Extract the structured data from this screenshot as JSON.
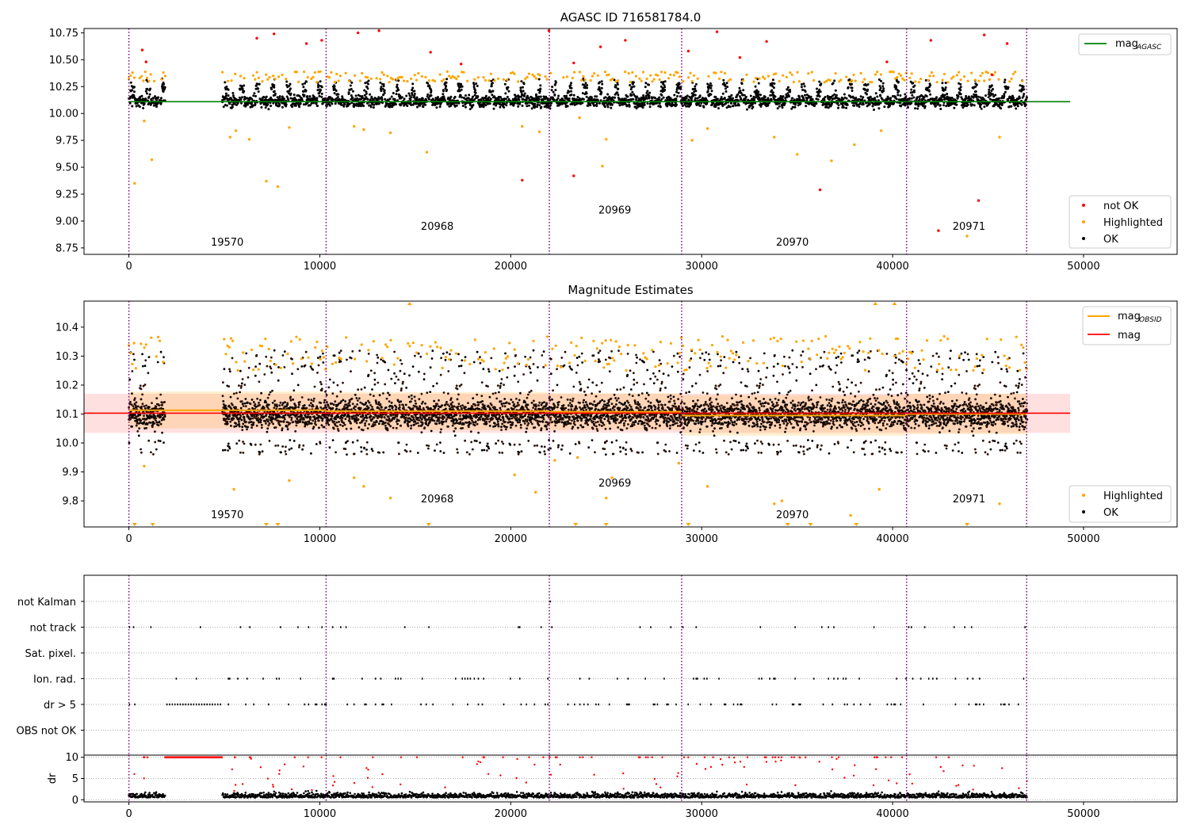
{
  "chart_data": [
    {
      "type": "scatter",
      "title": "AGASC ID 716581784.0",
      "xlabel": "",
      "ylabel": "",
      "xlim": [
        -2350,
        54900
      ],
      "ylim": [
        8.69,
        10.79
      ],
      "x_ticks": [
        0,
        10000,
        20000,
        30000,
        40000,
        50000
      ],
      "y_ticks": [
        8.75,
        9.0,
        9.25,
        9.5,
        9.75,
        10.0,
        10.25,
        10.5,
        10.75
      ],
      "y_tick_labels": [
        "8.75",
        "9.00",
        "9.25",
        "9.50",
        "9.75",
        "10.00",
        "10.25",
        "10.50",
        "10.75"
      ],
      "obsid_boundaries": [
        0,
        10330,
        22020,
        28950,
        40730,
        47020
      ],
      "obsid_labels": [
        {
          "text": "19570",
          "x": 5150,
          "y": 8.77
        },
        {
          "text": "20968",
          "x": 16150,
          "y": 8.92
        },
        {
          "text": "20969",
          "x": 25450,
          "y": 9.07
        },
        {
          "text": "20970",
          "x": 34750,
          "y": 8.77
        },
        {
          "text": "20971",
          "x": 44000,
          "y": 8.92
        }
      ],
      "segments": [
        [
          0,
          1900
        ],
        [
          4900,
          47050
        ]
      ],
      "ok_band": [
        10.0,
        10.3
      ],
      "series": [
        {
          "name": "mag_AGASC",
          "kind": "line",
          "x": [
            0,
            49300
          ],
          "y": [
            10.11,
            10.11
          ]
        },
        {
          "name": "not OK",
          "kind": "scatter",
          "sample": [
            [
              700,
              10.59
            ],
            [
              900,
              10.48
            ],
            [
              6700,
              10.7
            ],
            [
              7600,
              10.74
            ],
            [
              9300,
              10.65
            ],
            [
              10100,
              10.68
            ],
            [
              12000,
              10.75
            ],
            [
              13100,
              10.77
            ],
            [
              15800,
              10.57
            ],
            [
              17400,
              10.46
            ],
            [
              20600,
              9.38
            ],
            [
              22000,
              10.77
            ],
            [
              23300,
              9.42
            ],
            [
              23300,
              10.47
            ],
            [
              24700,
              10.62
            ],
            [
              26000,
              10.68
            ],
            [
              29300,
              10.58
            ],
            [
              30800,
              10.76
            ],
            [
              32000,
              10.52
            ],
            [
              33400,
              10.67
            ],
            [
              36200,
              9.29
            ],
            [
              39700,
              10.48
            ],
            [
              42000,
              10.68
            ],
            [
              42400,
              8.91
            ],
            [
              44500,
              9.19
            ],
            [
              44800,
              10.73
            ],
            [
              45200,
              10.36
            ],
            [
              46000,
              10.65
            ]
          ]
        },
        {
          "name": "Highlighted",
          "kind": "scatter",
          "sample": [
            [
              300,
              9.35
            ],
            [
              800,
              9.93
            ],
            [
              1200,
              9.57
            ],
            [
              5300,
              9.78
            ],
            [
              5600,
              9.84
            ],
            [
              6300,
              9.76
            ],
            [
              7200,
              9.37
            ],
            [
              7800,
              9.32
            ],
            [
              8400,
              9.87
            ],
            [
              11800,
              9.88
            ],
            [
              12300,
              9.85
            ],
            [
              13700,
              9.82
            ],
            [
              15600,
              9.64
            ],
            [
              20600,
              9.88
            ],
            [
              21500,
              9.83
            ],
            [
              23600,
              9.96
            ],
            [
              24800,
              9.51
            ],
            [
              25000,
              9.76
            ],
            [
              29500,
              9.75
            ],
            [
              30300,
              9.86
            ],
            [
              33800,
              9.78
            ],
            [
              35000,
              9.62
            ],
            [
              36800,
              9.56
            ],
            [
              38000,
              9.71
            ],
            [
              39400,
              9.84
            ],
            [
              43900,
              8.86
            ],
            [
              45600,
              9.78
            ]
          ]
        },
        {
          "name": "OK",
          "kind": "scatter"
        }
      ],
      "legend": {
        "location": "lower right",
        "entries": [
          "not OK",
          "Highlighted",
          "OK"
        ],
        "colors": [
          "#ff0000",
          "#ffa500",
          "#000000"
        ]
      },
      "legend_top": {
        "location": "upper right",
        "entries": [
          "mag"
        ],
        "subscripts": [
          "AGASC"
        ],
        "colors": [
          "#008000"
        ]
      }
    },
    {
      "type": "scatter",
      "title": "Magnitude Estimates",
      "xlabel": "",
      "ylabel": "",
      "xlim": [
        -2350,
        54900
      ],
      "ylim": [
        9.71,
        10.49
      ],
      "x_ticks": [
        0,
        10000,
        20000,
        30000,
        40000,
        50000
      ],
      "y_ticks": [
        9.8,
        9.9,
        10.0,
        10.1,
        10.2,
        10.3,
        10.4
      ],
      "y_tick_labels": [
        "9.8",
        "9.9",
        "10.0",
        "10.1",
        "10.2",
        "10.3",
        "10.4"
      ],
      "obsid_boundaries": [
        0,
        10330,
        22020,
        28950,
        40730,
        47020
      ],
      "obsid_labels": [
        {
          "text": "19570",
          "x": 5150,
          "y": 9.74
        },
        {
          "text": "20968",
          "x": 16150,
          "y": 9.795
        },
        {
          "text": "20969",
          "x": 25450,
          "y": 9.85
        },
        {
          "text": "20970",
          "x": 34750,
          "y": 9.74
        },
        {
          "text": "20971",
          "x": 44000,
          "y": 9.795
        }
      ],
      "mag": {
        "value": 10.103,
        "band": [
          10.035,
          10.17
        ],
        "x": [
          -2350,
          49300
        ]
      },
      "mag_obsid": [
        {
          "x": [
            0,
            10330
          ],
          "y": 10.113,
          "band": [
            10.05,
            10.178
          ]
        },
        {
          "x": [
            10330,
            22020
          ],
          "y": 10.11,
          "band": [
            10.045,
            10.176
          ]
        },
        {
          "x": [
            22020,
            28950
          ],
          "y": 10.108,
          "band": [
            10.045,
            10.172
          ]
        },
        {
          "x": [
            28950,
            40730
          ],
          "y": 10.095,
          "band": [
            10.025,
            10.165
          ]
        },
        {
          "x": [
            40730,
            47020
          ],
          "y": 10.1,
          "band": [
            10.03,
            10.17
          ]
        }
      ],
      "legend": {
        "location": "lower right",
        "entries": [
          "Highlighted",
          "OK"
        ],
        "colors": [
          "#ffa500",
          "#000000"
        ]
      },
      "legend_top": {
        "location": "upper right",
        "entries": [
          "mag",
          "mag"
        ],
        "subscripts": [
          "OBSID",
          ""
        ],
        "colors": [
          "#ffa500",
          "#ff0000"
        ]
      }
    },
    {
      "type": "scatter",
      "title": "",
      "xlabel": "",
      "ylabel": "",
      "xlim": [
        -2350,
        54900
      ],
      "categories": [
        "not Kalman",
        "not track",
        "Sat. pixel.",
        "Ion. rad.",
        "dr > 5",
        "OBS not OK"
      ],
      "obsid_boundaries": [
        0,
        10330,
        22020,
        28950,
        40730,
        47020
      ],
      "flag_density": [
        0,
        0.18,
        0,
        0.3,
        0.34,
        0
      ]
    },
    {
      "type": "scatter",
      "title": "",
      "xlabel": "",
      "ylabel": "dr",
      "xlim": [
        -2350,
        54900
      ],
      "ylim": [
        -0.5,
        10.5
      ],
      "x_ticks": [
        0,
        10000,
        20000,
        30000,
        40000,
        50000
      ],
      "y_ticks": [
        0,
        5,
        10
      ],
      "y_tick_labels": [
        "0",
        "5",
        "10"
      ],
      "obsid_boundaries": [
        0,
        10330,
        22020,
        28950,
        40730,
        47020
      ],
      "clip_value": 10
    }
  ]
}
